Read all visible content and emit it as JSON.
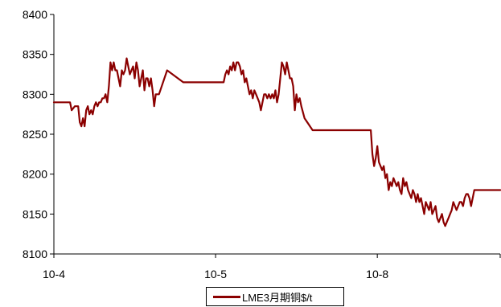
{
  "chart_data": {
    "type": "line",
    "title": "",
    "xlabel": "",
    "ylabel": "",
    "ylim": [
      8100,
      8400
    ],
    "y_ticks": [
      8100,
      8150,
      8200,
      8250,
      8300,
      8350,
      8400
    ],
    "x_tick_labels": [
      "10-4",
      "10-5",
      "10-8"
    ],
    "x_tick_positions": [
      0,
      100,
      200
    ],
    "xlim": [
      0,
      276
    ],
    "grid": false,
    "legend_position": "bottom-center",
    "series": [
      {
        "name": "LME3月期铜$/t",
        "color": "#8B0000",
        "x": [
          0,
          10,
          11,
          13,
          15,
          16,
          17,
          18,
          19,
          20,
          21,
          22,
          23,
          24,
          25,
          26,
          27,
          28,
          29,
          30,
          31,
          32,
          33,
          34,
          35,
          36,
          37,
          38,
          39,
          40,
          41,
          42,
          43,
          44,
          45,
          46,
          47,
          48,
          49,
          50,
          51,
          52,
          53,
          54,
          55,
          56,
          57,
          58,
          59,
          60,
          61,
          62,
          63,
          65,
          70,
          80,
          90,
          102,
          105,
          106,
          107,
          108,
          109,
          110,
          111,
          112,
          113,
          114,
          115,
          116,
          117,
          118,
          119,
          120,
          121,
          122,
          123,
          124,
          125,
          126,
          127,
          128,
          129,
          130,
          131,
          132,
          133,
          134,
          135,
          136,
          137,
          138,
          139,
          140,
          141,
          142,
          143,
          144,
          145,
          146,
          147,
          148,
          149,
          150,
          151,
          152,
          153,
          155,
          160,
          170,
          175,
          195,
          196,
          197,
          198,
          199,
          200,
          201,
          202,
          203,
          204,
          205,
          206,
          207,
          208,
          209,
          210,
          211,
          212,
          213,
          214,
          215,
          216,
          217,
          218,
          219,
          220,
          221,
          222,
          223,
          224,
          225,
          226,
          227,
          228,
          229,
          230,
          231,
          232,
          233,
          234,
          235,
          236,
          237,
          238,
          239,
          240,
          241,
          242,
          243,
          244,
          245,
          246,
          247,
          248,
          249,
          250,
          251,
          252,
          253,
          254,
          255,
          256,
          257,
          258,
          260,
          265,
          276
        ],
        "y": [
          8290,
          8290,
          8280,
          8285,
          8285,
          8265,
          8260,
          8270,
          8260,
          8280,
          8285,
          8275,
          8280,
          8275,
          8285,
          8290,
          8285,
          8290,
          8290,
          8295,
          8295,
          8300,
          8290,
          8310,
          8340,
          8330,
          8340,
          8330,
          8330,
          8320,
          8310,
          8330,
          8325,
          8330,
          8345,
          8335,
          8325,
          8330,
          8335,
          8320,
          8340,
          8330,
          8310,
          8320,
          8330,
          8305,
          8320,
          8320,
          8310,
          8320,
          8305,
          8285,
          8300,
          8300,
          8330,
          8315,
          8315,
          8315,
          8315,
          8325,
          8330,
          8325,
          8335,
          8330,
          8340,
          8330,
          8340,
          8340,
          8335,
          8325,
          8330,
          8315,
          8320,
          8310,
          8300,
          8305,
          8295,
          8305,
          8300,
          8295,
          8290,
          8280,
          8290,
          8300,
          8300,
          8295,
          8300,
          8295,
          8300,
          8295,
          8305,
          8290,
          8300,
          8320,
          8340,
          8335,
          8325,
          8340,
          8330,
          8320,
          8320,
          8310,
          8280,
          8300,
          8290,
          8295,
          8285,
          8270,
          8255,
          8255,
          8255,
          8255,
          8255,
          8225,
          8210,
          8220,
          8235,
          8215,
          8210,
          8205,
          8210,
          8195,
          8200,
          8180,
          8190,
          8185,
          8195,
          8190,
          8185,
          8190,
          8180,
          8175,
          8195,
          8185,
          8190,
          8180,
          8175,
          8170,
          8180,
          8175,
          8165,
          8175,
          8165,
          8170,
          8160,
          8150,
          8165,
          8160,
          8155,
          8165,
          8150,
          8155,
          8160,
          8145,
          8140,
          8145,
          8150,
          8140,
          8135,
          8140,
          8145,
          8150,
          8155,
          8165,
          8160,
          8155,
          8160,
          8165,
          8165,
          8160,
          8170,
          8175,
          8175,
          8170,
          8160,
          8180,
          8180,
          8180
        ]
      }
    ]
  }
}
